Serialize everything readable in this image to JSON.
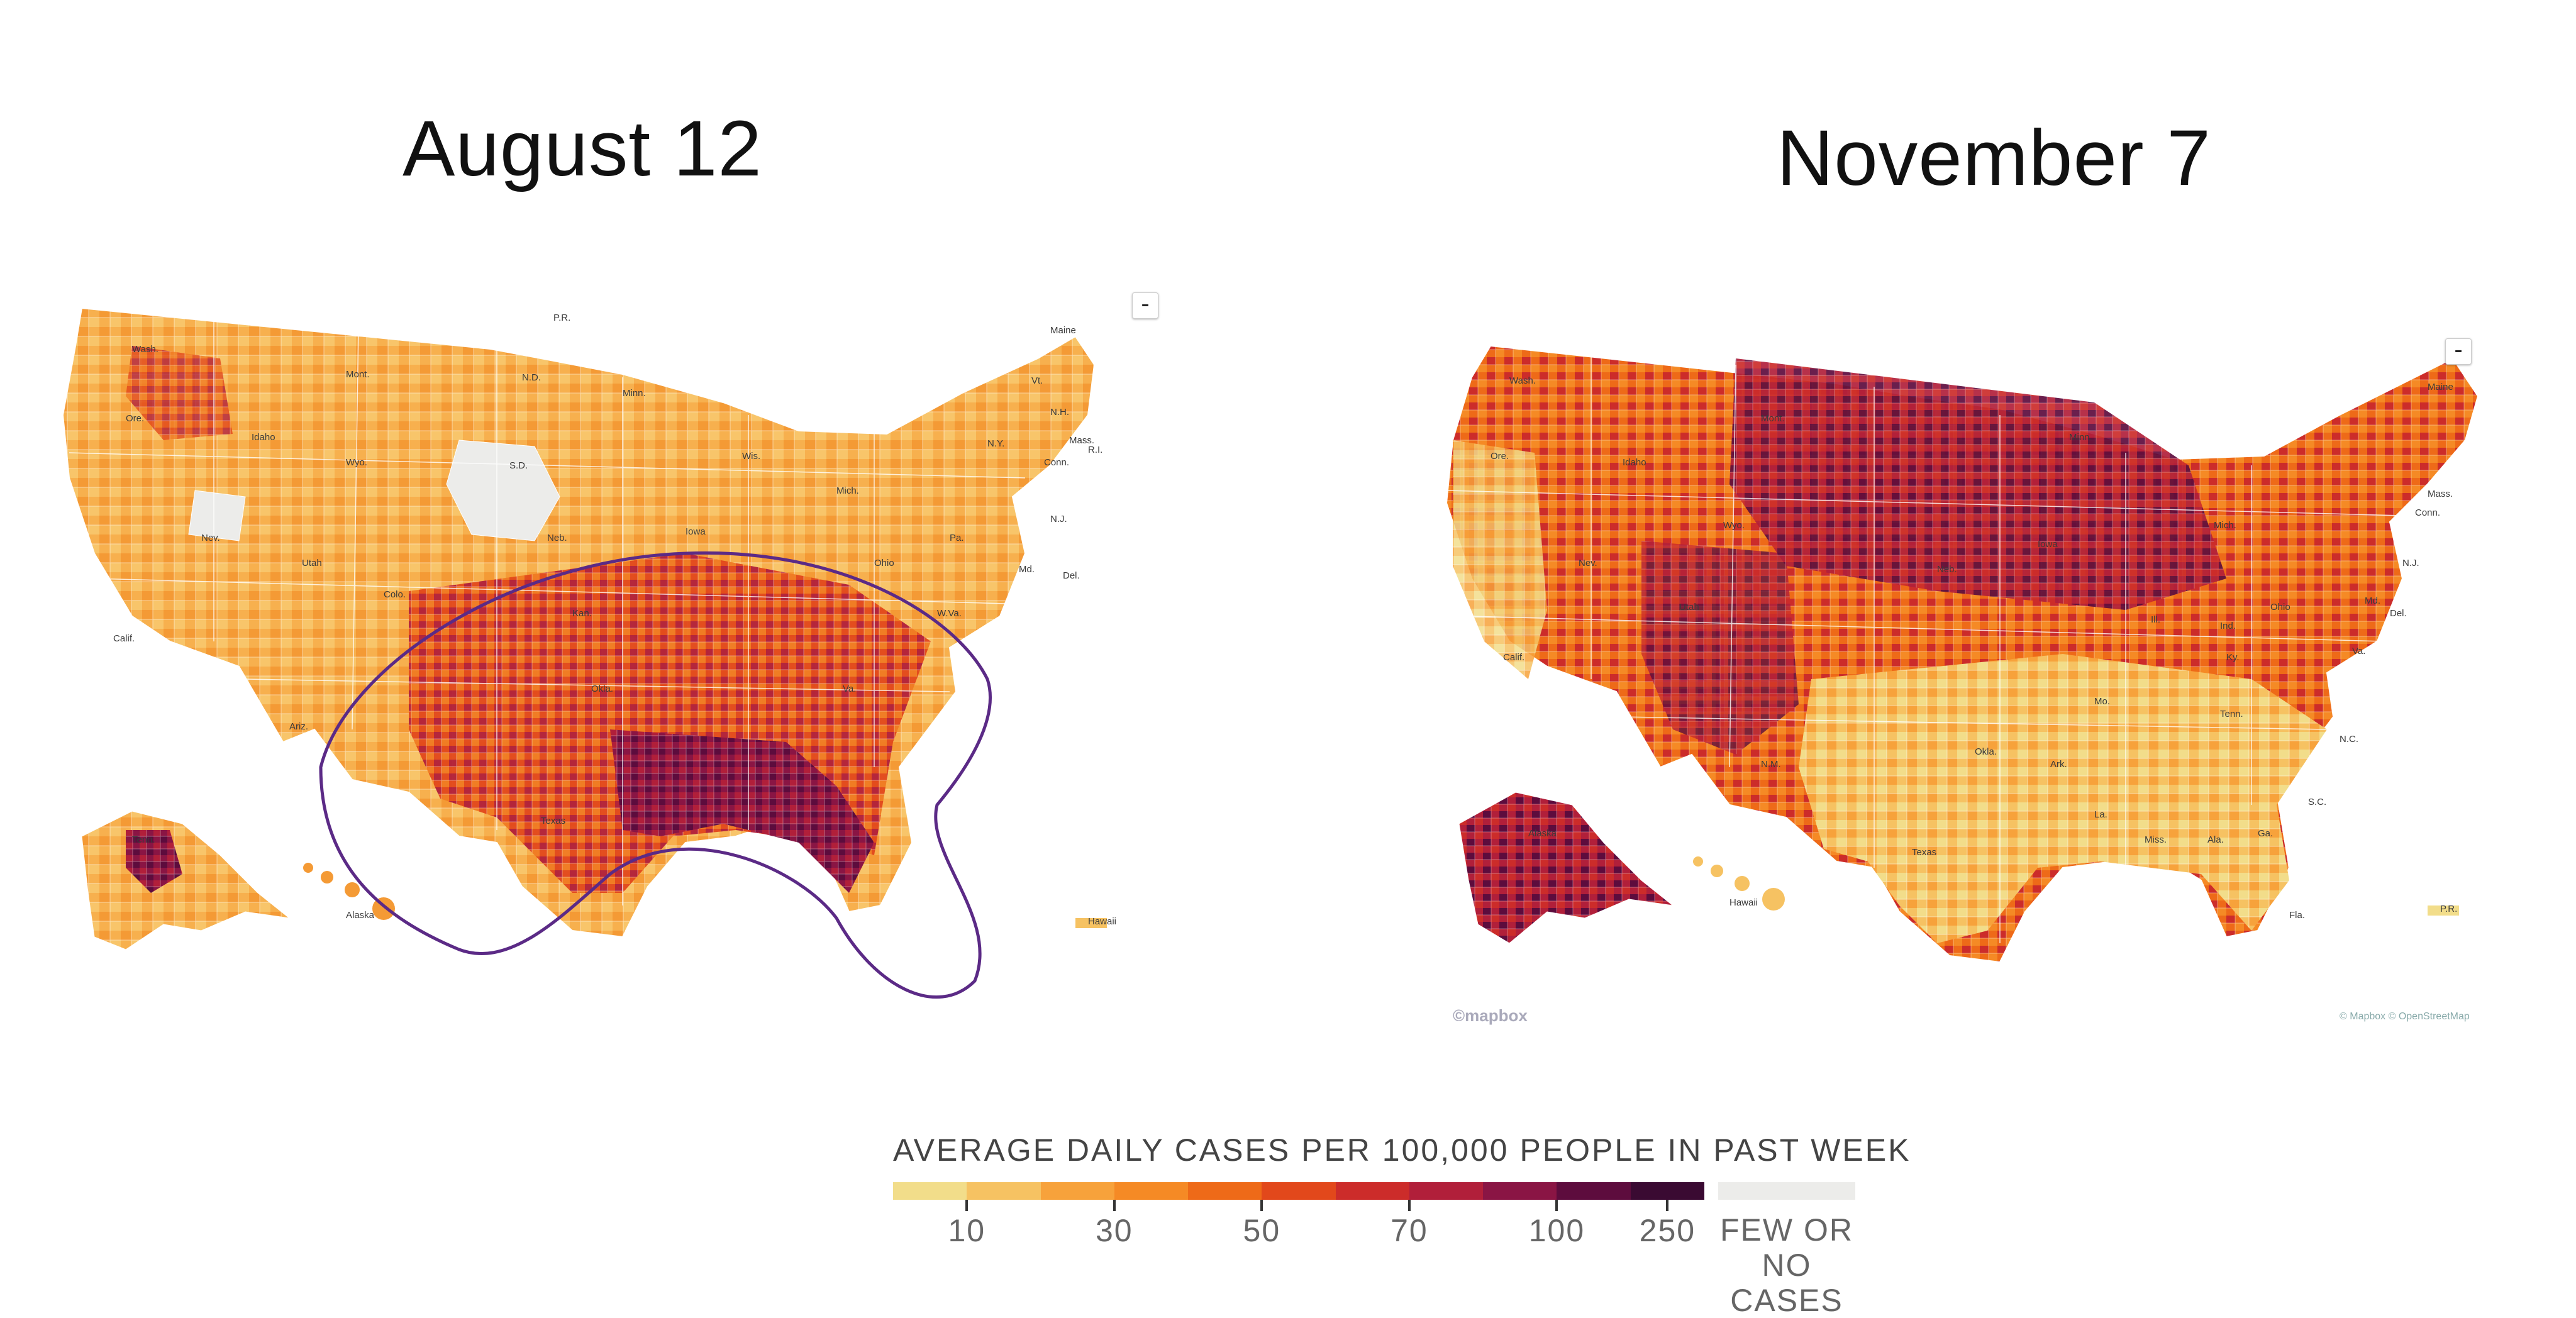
{
  "maps": {
    "left": {
      "title": "August 12",
      "zoom_label": "-",
      "labels": [
        "Wash.",
        "Ore.",
        "Idaho",
        "Mont.",
        "N.D.",
        "Minn.",
        "S.D.",
        "Wyo.",
        "Neb.",
        "Nev.",
        "Utah",
        "Colo.",
        "Calif.",
        "Ariz.",
        "Kan.",
        "Okla.",
        "Texas",
        "Iowa",
        "Wis.",
        "Mich.",
        "Ohio",
        "Pa.",
        "N.Y.",
        "Vt.",
        "N.H.",
        "Maine",
        "Mass.",
        "Conn.",
        "R.I.",
        "N.J.",
        "Md.",
        "Del.",
        "W.Va.",
        "Va.",
        "Tenn.",
        "Alaska",
        "Hawaii",
        "P.R."
      ]
    },
    "right": {
      "title": "November 7",
      "zoom_label": "-",
      "labels": [
        "Wash.",
        "Ore.",
        "Idaho",
        "Mont.",
        "Wyo.",
        "Nev.",
        "Calif.",
        "Utah",
        "Neb.",
        "Iowa",
        "Mo.",
        "Ill.",
        "Ind.",
        "Ohio",
        "Ky.",
        "Tenn.",
        "Okla.",
        "Ark.",
        "Texas",
        "La.",
        "Miss.",
        "Ala.",
        "Ga.",
        "S.C.",
        "N.C.",
        "Va.",
        "Md.",
        "Del.",
        "N.J.",
        "Conn.",
        "Mass.",
        "Maine",
        "Mich.",
        "Minn.",
        "N.M.",
        "Fla.",
        "Alaska",
        "Hawaii",
        "P.R."
      ],
      "attribution_left": "©mapbox",
      "attribution_right": "© Mapbox © OpenStreetMap"
    }
  },
  "legend": {
    "title": "AVERAGE DAILY CASES PER 100,000 PEOPLE IN PAST WEEK",
    "colors": [
      "#f2dd8a",
      "#f6c262",
      "#f7a23b",
      "#f58a25",
      "#ee6a18",
      "#e2481b",
      "#cc2c2a",
      "#b11f3a",
      "#8a1544",
      "#5d0c3d",
      "#3a0a32"
    ],
    "ticks": [
      {
        "label": "10",
        "position": 1
      },
      {
        "label": "30",
        "position": 3
      },
      {
        "label": "50",
        "position": 5
      },
      {
        "label": "70",
        "position": 7
      },
      {
        "label": "100",
        "position": 9
      },
      {
        "label": "250",
        "position": 11
      }
    ],
    "few_or_none_color": "#ececea",
    "few_or_none_line1": "FEW OR",
    "few_or_none_line2": "NO CASES"
  },
  "annotation": {
    "description_color": "#5b2a86"
  }
}
